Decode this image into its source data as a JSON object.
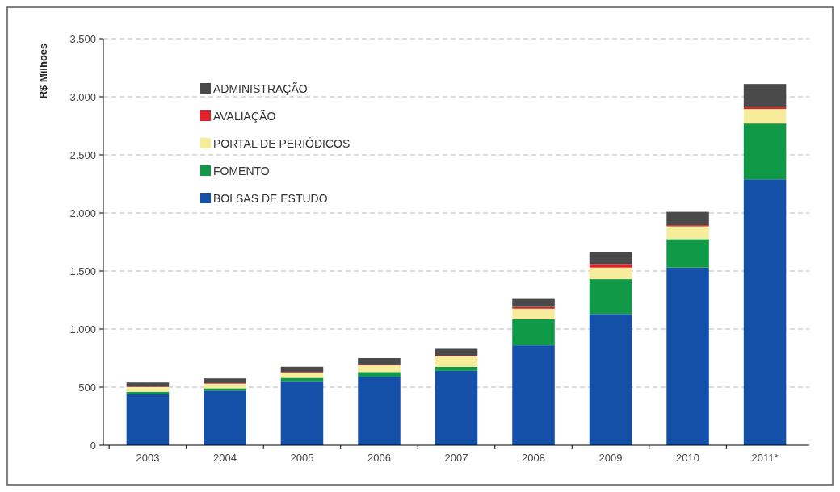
{
  "chart_data": {
    "type": "bar",
    "stacked": true,
    "ylabel": "R$ Milhões",
    "categories": [
      "2003",
      "2004",
      "2005",
      "2006",
      "2007",
      "2008",
      "2009",
      "2010",
      "2011*"
    ],
    "series": [
      {
        "name": "BOLSAS DE ESTUDO",
        "color": "#1450a8",
        "values": [
          440,
          470,
          550,
          590,
          640,
          860,
          1130,
          1530,
          2290
        ]
      },
      {
        "name": "FOMENTO",
        "color": "#109a48",
        "values": [
          20,
          20,
          30,
          40,
          35,
          225,
          300,
          245,
          480
        ]
      },
      {
        "name": "PORTAL DE PERIÓDICOS",
        "color": "#f6ec9c",
        "values": [
          40,
          40,
          45,
          60,
          90,
          90,
          100,
          110,
          125
        ]
      },
      {
        "name": "AVALIAÇÃO",
        "color": "#e0202a",
        "values": [
          5,
          5,
          5,
          5,
          5,
          15,
          30,
          10,
          15
        ]
      },
      {
        "name": "ADMINISTRAÇÃO",
        "color": "#4a4a4a",
        "values": [
          35,
          40,
          45,
          55,
          60,
          70,
          105,
          115,
          200
        ]
      }
    ],
    "ylim": [
      0,
      3500
    ],
    "yticks": [
      0,
      500,
      {
        "value": 1000,
        "label": "1.000"
      },
      {
        "value": 1500,
        "label": "1.500"
      },
      {
        "value": 2000,
        "label": "2.000"
      },
      {
        "value": 2500,
        "label": "2.500"
      },
      {
        "value": 3000,
        "label": "3.000"
      },
      {
        "value": 3500,
        "label": "3.500"
      }
    ],
    "grid": "y",
    "legend": "top left"
  }
}
